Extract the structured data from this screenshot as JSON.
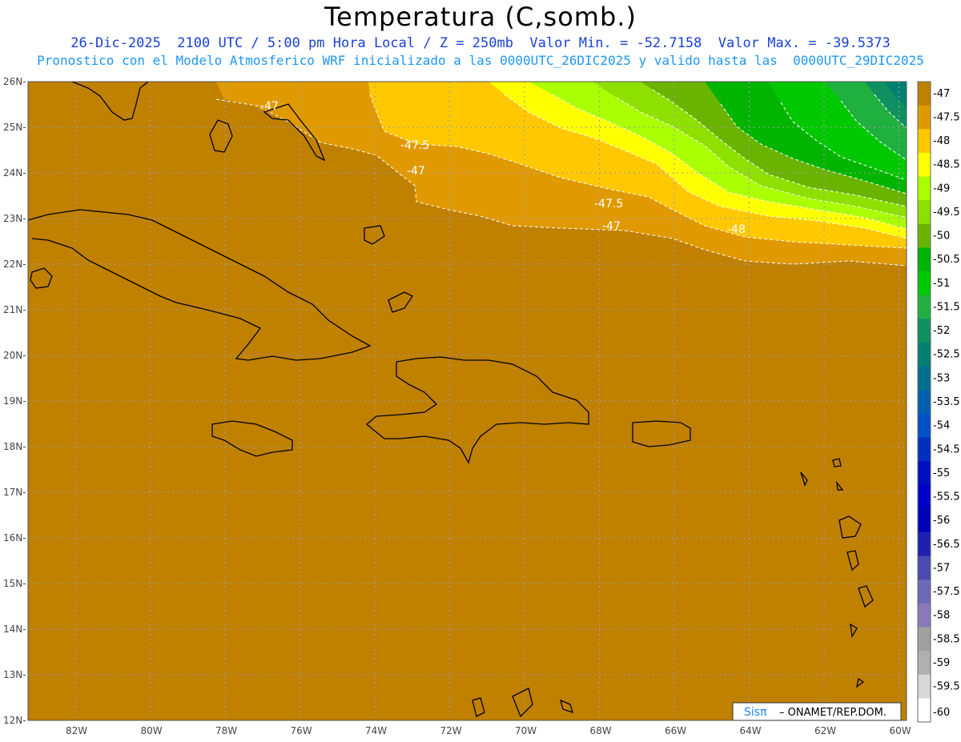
{
  "header": {
    "title": "Temperatura (C,somb.)",
    "subtitle_line1": "26-Dic-2025  2100 UTC / 5:00 pm Hora Local / Z = 250mb  Valor Min. = -52.7158  Valor Max. = -39.5373",
    "subtitle_line2": "Pronostico con el Modelo Atmosferico WRF inicializado a las 0000UTC_26DIC2025 y valido hasta las  0000UTC_29DIC2025"
  },
  "map": {
    "lat_labels": [
      "26N",
      "25N",
      "24N",
      "23N",
      "22N",
      "21N",
      "20N",
      "19N",
      "18N",
      "17N",
      "16N",
      "15N",
      "14N",
      "13N",
      "12N"
    ],
    "lon_labels": [
      "82W",
      "80W",
      "78W",
      "76W",
      "74W",
      "72W",
      "70W",
      "68W",
      "66W",
      "64W",
      "62W",
      "60W"
    ],
    "contour_labels": [
      "-47",
      "-47.5",
      "-47",
      "-47.5",
      "-47",
      "-48"
    ]
  },
  "colorbar": {
    "labels": [
      "-47",
      "-47.5",
      "-48",
      "-48.5",
      "-49",
      "-49.5",
      "-50",
      "-50.5",
      "-51",
      "-51.5",
      "-52",
      "-52.5",
      "-53",
      "-53.5",
      "-54",
      "-54.5",
      "-55",
      "-55.5",
      "-56",
      "-56.5",
      "-57",
      "-57.5",
      "-58",
      "-58.5",
      "-59",
      "-59.5",
      "-60"
    ],
    "colors": [
      "#c08000",
      "#e09a00",
      "#ffc800",
      "#ffff00",
      "#aaff00",
      "#8ee000",
      "#6ab400",
      "#00b400",
      "#00c800",
      "#20b040",
      "#109060",
      "#008070",
      "#007090",
      "#0060b0",
      "#0050c8",
      "#0030c0",
      "#0010c0",
      "#0000c8",
      "#0000b8",
      "#2020b0",
      "#4a4ab0",
      "#6a6ab8",
      "#8a7ab8",
      "#a0a0a0",
      "#b0b0b0",
      "#d8d8d8",
      "#ffffff"
    ]
  },
  "credit": {
    "sispi": "Sisπ",
    "org": "– ONAMET/REP.DOM."
  }
}
